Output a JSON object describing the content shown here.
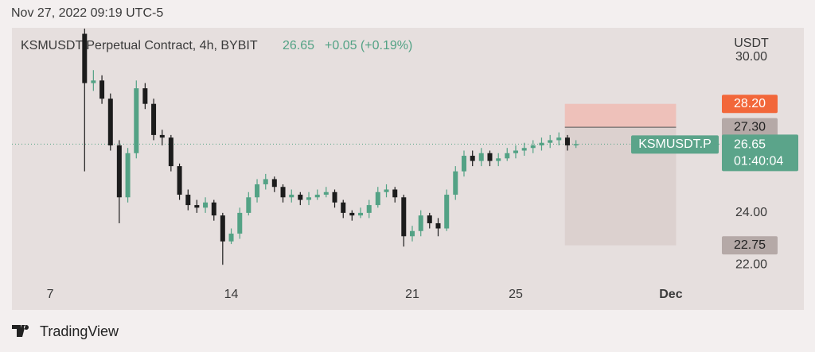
{
  "header": {
    "timestamp": "Nov 27, 2022 09:19 UTC-5"
  },
  "chart_data": {
    "type": "candlestick",
    "title": "KSMUSDT Perpetual Contract, 4h, BYBIT",
    "last_price": 26.65,
    "change": "+0.05 (+0.19%)",
    "y_axis_label": "USDT",
    "symbol_tag": "KSMUSDT.P",
    "countdown": "01:40:04",
    "x": [
      8.33,
      8.67,
      9,
      9.33,
      9.67,
      10,
      10.33,
      10.67,
      11,
      11.33,
      11.67,
      12,
      12.33,
      12.67,
      13,
      13.33,
      13.67,
      14,
      14.33,
      14.67,
      15,
      15.33,
      15.67,
      16,
      16.33,
      16.67,
      17,
      17.33,
      17.67,
      18,
      18.33,
      18.67,
      19,
      19.33,
      19.67,
      20,
      20.33,
      20.67,
      21,
      21.33,
      21.67,
      22,
      22.33,
      22.67,
      23,
      23.33,
      23.67,
      24,
      24.33,
      24.67,
      25,
      25.33,
      25.67,
      26,
      26.33,
      26.67,
      27,
      27.33
    ],
    "open": [
      30.9,
      29.0,
      29.1,
      28.4,
      26.6,
      24.6,
      26.3,
      28.8,
      28.2,
      27.0,
      26.9,
      25.8,
      24.7,
      24.3,
      24.2,
      24.4,
      23.9,
      22.9,
      23.2,
      24.0,
      24.6,
      25.1,
      25.3,
      25.0,
      24.6,
      24.7,
      24.5,
      24.6,
      24.7,
      24.8,
      24.4,
      24.0,
      23.9,
      24.0,
      24.3,
      24.8,
      24.9,
      24.6,
      23.1,
      23.3,
      23.9,
      23.6,
      23.4,
      24.7,
      25.6,
      26.2,
      26.0,
      26.3,
      26.0,
      26.1,
      26.3,
      26.4,
      26.5,
      26.6,
      26.7,
      26.8,
      26.9,
      26.6
    ],
    "high": [
      31.1,
      29.5,
      29.3,
      28.6,
      26.8,
      26.5,
      29.1,
      29.0,
      28.4,
      27.2,
      27.0,
      25.9,
      24.9,
      24.5,
      24.6,
      24.5,
      24.0,
      23.4,
      24.2,
      24.8,
      25.3,
      25.5,
      25.4,
      25.1,
      24.9,
      24.8,
      24.8,
      24.9,
      25.0,
      24.9,
      24.5,
      24.1,
      24.2,
      24.5,
      25.0,
      25.1,
      25.0,
      24.7,
      23.5,
      24.1,
      24.0,
      23.8,
      24.9,
      25.8,
      26.4,
      26.4,
      26.5,
      26.4,
      26.3,
      26.5,
      26.6,
      26.7,
      26.8,
      26.9,
      27.0,
      27.1,
      27.0,
      26.8
    ],
    "low": [
      25.6,
      28.7,
      28.2,
      26.4,
      23.6,
      24.4,
      26.1,
      28.0,
      26.8,
      26.6,
      25.6,
      24.5,
      24.1,
      24.0,
      24.0,
      23.7,
      22.0,
      22.8,
      23.0,
      23.9,
      24.4,
      24.9,
      24.8,
      24.4,
      24.4,
      24.3,
      24.3,
      24.5,
      24.6,
      24.2,
      23.8,
      23.7,
      23.8,
      23.8,
      24.2,
      24.6,
      24.4,
      22.7,
      22.9,
      23.1,
      23.4,
      23.1,
      23.3,
      24.5,
      25.4,
      25.8,
      25.8,
      25.8,
      25.8,
      26.0,
      26.1,
      26.2,
      26.3,
      26.4,
      26.5,
      26.6,
      26.4,
      26.5
    ],
    "close": [
      29.0,
      29.1,
      28.4,
      26.6,
      24.6,
      26.3,
      28.8,
      28.2,
      27.0,
      26.9,
      25.8,
      24.7,
      24.3,
      24.2,
      24.4,
      23.9,
      22.9,
      23.2,
      24.0,
      24.6,
      25.1,
      25.3,
      25.0,
      24.6,
      24.7,
      24.5,
      24.6,
      24.7,
      24.8,
      24.4,
      24.0,
      23.9,
      24.0,
      24.3,
      24.8,
      24.9,
      24.6,
      23.1,
      23.3,
      23.9,
      23.6,
      23.4,
      24.7,
      25.6,
      26.2,
      26.0,
      26.3,
      26.0,
      26.1,
      26.3,
      26.4,
      26.5,
      26.6,
      26.7,
      26.8,
      26.9,
      26.6,
      26.65
    ],
    "up_color": "#53a285",
    "down_color": "#1c1c1c",
    "xlim": [
      5.52,
      32.91
    ],
    "xticks": [
      7,
      14,
      21,
      25,
      {
        "value": 31,
        "label": "Dec"
      }
    ],
    "ylim": [
      21.18,
      31.13
    ],
    "yticks": [
      {
        "value": 22,
        "label": "22.00"
      },
      {
        "value": 24,
        "label": "24.00"
      },
      {
        "value": 30,
        "label": "30.00"
      }
    ],
    "position": {
      "stop": {
        "value": 28.2,
        "label": "28.20"
      },
      "entry": {
        "value": 27.3,
        "label": "27.30"
      },
      "target": {
        "value": 22.75,
        "label": "22.75"
      },
      "x_start": 26.9,
      "x_end": 31.2
    }
  },
  "footer": {
    "brand": "TradingView"
  }
}
